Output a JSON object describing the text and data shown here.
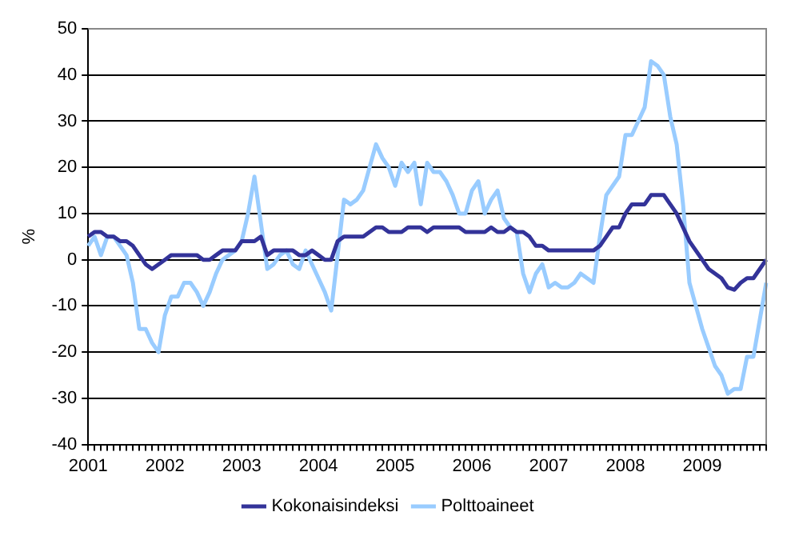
{
  "chart_data": {
    "type": "line",
    "ylabel": "%",
    "categories": [
      "2001",
      null,
      null,
      null,
      null,
      null,
      null,
      null,
      null,
      null,
      null,
      null,
      "2002",
      null,
      null,
      null,
      null,
      null,
      null,
      null,
      null,
      null,
      null,
      null,
      "2003",
      null,
      null,
      null,
      null,
      null,
      null,
      null,
      null,
      null,
      null,
      null,
      "2004",
      null,
      null,
      null,
      null,
      null,
      null,
      null,
      null,
      null,
      null,
      null,
      "2005",
      null,
      null,
      null,
      null,
      null,
      null,
      null,
      null,
      null,
      null,
      null,
      "2006",
      null,
      null,
      null,
      null,
      null,
      null,
      null,
      null,
      null,
      null,
      null,
      "2007",
      null,
      null,
      null,
      null,
      null,
      null,
      null,
      null,
      null,
      null,
      null,
      "2008",
      null,
      null,
      null,
      null,
      null,
      null,
      null,
      null,
      null,
      null,
      null,
      "2009",
      null,
      null,
      null,
      null,
      null,
      null,
      null,
      null,
      null,
      null
    ],
    "series": [
      {
        "name": "Kokonaisindeksi",
        "color": "#333399",
        "values": [
          5,
          6,
          6,
          5,
          5,
          4,
          4,
          3,
          1,
          -1,
          -2,
          -1,
          0,
          1,
          1,
          1,
          1,
          1,
          0,
          0,
          1,
          2,
          2,
          2,
          4,
          4,
          4,
          5,
          1,
          2,
          2,
          2,
          2,
          1,
          1,
          2,
          1,
          0,
          0,
          4,
          5,
          5,
          5,
          5,
          6,
          7,
          7,
          6,
          6,
          6,
          7,
          7,
          7,
          6,
          7,
          7,
          7,
          7,
          7,
          6,
          6,
          6,
          6,
          7,
          6,
          6,
          7,
          6,
          6,
          5,
          3,
          3,
          2,
          2,
          2,
          2,
          2,
          2,
          2,
          2,
          3,
          5,
          7,
          7,
          10,
          12,
          12,
          12,
          14,
          14,
          14,
          12,
          10,
          7,
          4,
          2,
          0,
          -2,
          -3,
          -4,
          -6,
          -6.5,
          -5,
          -4,
          -4,
          -2,
          0
        ]
      },
      {
        "name": "Polttoaineet",
        "color": "#99ccff",
        "values": [
          3,
          5,
          1,
          5,
          5,
          3,
          1,
          -5,
          -15,
          -15,
          -18,
          -20,
          -12,
          -8,
          -8,
          -5,
          -5,
          -7,
          -10,
          -7,
          -3,
          0,
          1,
          2,
          4,
          10,
          18,
          8,
          -2,
          -1,
          1,
          2,
          -1,
          -2,
          2,
          -1,
          -4,
          -7,
          -11,
          1,
          13,
          12,
          13,
          15,
          20,
          25,
          22,
          20,
          16,
          21,
          19,
          21,
          12,
          21,
          19,
          19,
          17,
          14,
          10,
          10,
          15,
          17,
          10,
          13,
          15,
          9,
          7,
          6,
          -3,
          -7,
          -3,
          -1,
          -6,
          -5,
          -6,
          -6,
          -5,
          -3,
          -4,
          -5,
          5,
          14,
          16,
          18,
          27,
          27,
          30,
          33,
          43,
          42,
          40,
          31,
          25,
          12,
          -5,
          -10,
          -15,
          -19,
          -23,
          -25,
          -29,
          -28,
          -28,
          -21,
          -21,
          -13,
          -5
        ]
      }
    ],
    "ylim": [
      -40,
      50
    ],
    "yticks": [
      -40,
      -30,
      -20,
      -10,
      0,
      10,
      20,
      30,
      40,
      50
    ],
    "grid": "y",
    "legend": "bottom"
  }
}
